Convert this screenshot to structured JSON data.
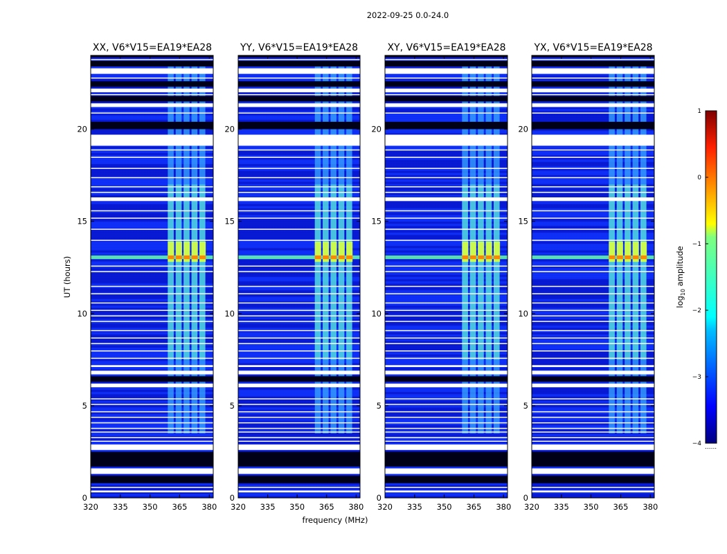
{
  "chart_data": {
    "type": "heatmap",
    "suptitle": "2022-09-25 0.0-24.0",
    "xlabel": "frequency (MHz)",
    "ylabel": "UT (hours)",
    "xlim": [
      320,
      382
    ],
    "ylim": [
      0,
      24
    ],
    "xticks": [
      "320",
      "335",
      "350",
      "365",
      "380"
    ],
    "yticks": [
      "0",
      "5",
      "10",
      "15",
      "20"
    ],
    "panels": [
      {
        "title": "XX, V6*V15=EA19*EA28"
      },
      {
        "title": "YY, V6*V15=EA19*EA28"
      },
      {
        "title": "XY, V6*V15=EA19*EA28"
      },
      {
        "title": "YX, V6*V15=EA19*EA28"
      }
    ],
    "colorbar": {
      "label": "log10 amplitude",
      "range": [
        -4,
        1
      ],
      "ticks": [
        "1",
        "0",
        "−1",
        "−2",
        "−3",
        "−4"
      ],
      "colormap": "jet"
    },
    "band_mhz": [
      359,
      379
    ],
    "bright_ut": [
      12.8,
      13.9
    ],
    "flagged_white_ut": [
      [
        23.0,
        23.3
      ],
      [
        22.0,
        22.2
      ],
      [
        21.2,
        21.4
      ],
      [
        19.1,
        19.7
      ],
      [
        16.1,
        16.3
      ],
      [
        7.1,
        7.2
      ],
      [
        6.7,
        6.9
      ],
      [
        6.0,
        6.2
      ],
      [
        2.6,
        2.9
      ],
      [
        1.3,
        1.6
      ],
      [
        0.3,
        0.4
      ]
    ],
    "flagged_black_ut": [
      [
        23.4,
        23.7
      ],
      [
        22.3,
        22.6
      ],
      [
        21.5,
        21.8
      ],
      [
        20.0,
        20.4
      ],
      [
        6.3,
        6.6
      ],
      [
        1.7,
        2.5
      ],
      [
        0.8,
        1.2
      ]
    ]
  }
}
